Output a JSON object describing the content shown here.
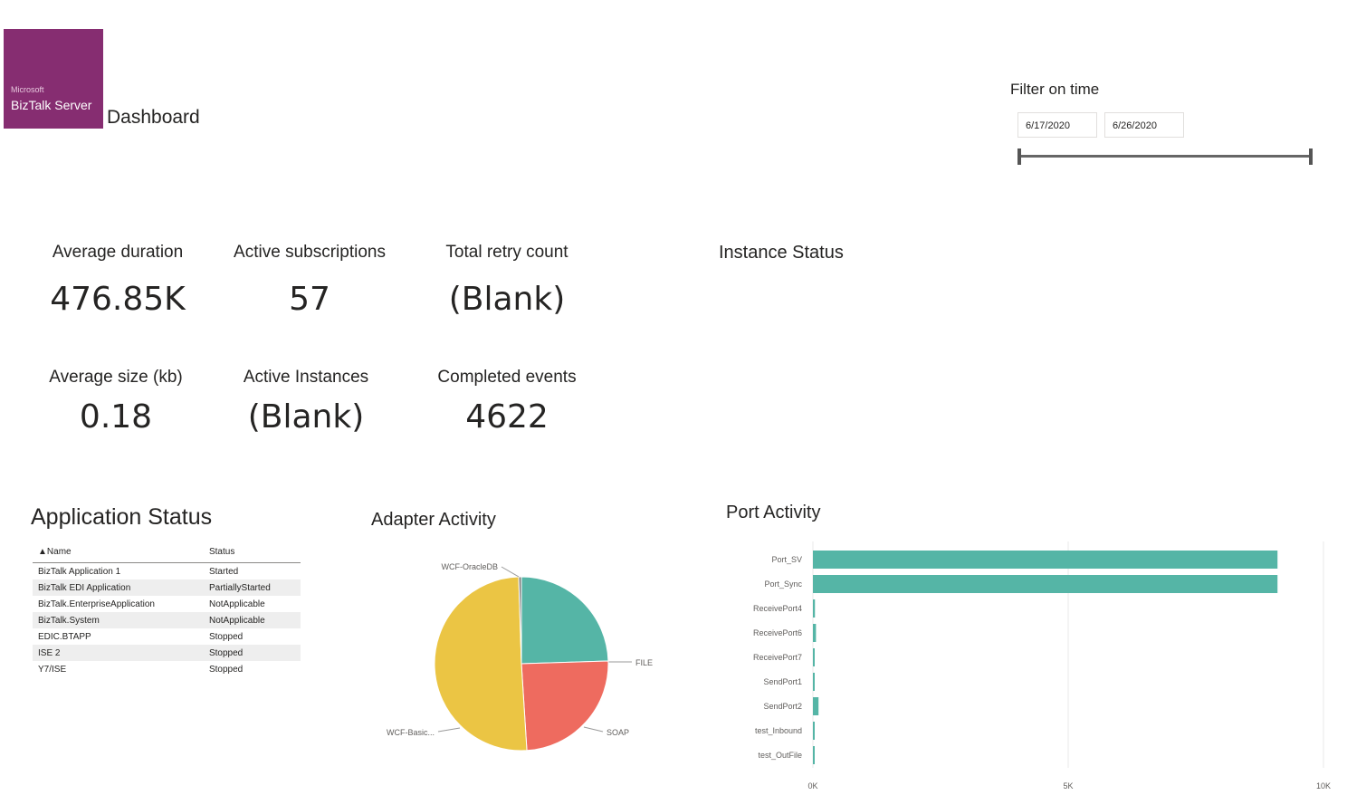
{
  "header": {
    "logo_small": "Microsoft",
    "logo_name": "BizTalk Server",
    "title": "Dashboard"
  },
  "filter": {
    "title": "Filter on time",
    "start_date": "6/17/2020",
    "end_date": "6/26/2020"
  },
  "kpis": {
    "avg_duration": {
      "label": "Average duration",
      "value": "476.85K"
    },
    "active_subscriptions": {
      "label": "Active subscriptions",
      "value": "57"
    },
    "total_retry": {
      "label": "Total retry count",
      "value": "(Blank)"
    },
    "avg_size": {
      "label": "Average size (kb)",
      "value": "0.18"
    },
    "active_instances": {
      "label": "Active Instances",
      "value": "(Blank)"
    },
    "completed_events": {
      "label": "Completed events",
      "value": "4622"
    }
  },
  "instance_status": {
    "title": "Instance Status"
  },
  "application_status": {
    "title": "Application Status",
    "columns": [
      "Name",
      "Status"
    ],
    "rows": [
      [
        "BizTalk Application 1",
        "Started"
      ],
      [
        "BizTalk EDI Application",
        "PartiallyStarted"
      ],
      [
        "BizTalk.EnterpriseApplication",
        "NotApplicable"
      ],
      [
        "BizTalk.System",
        "NotApplicable"
      ],
      [
        "EDIC.BTAPP",
        "Stopped"
      ],
      [
        "ISE 2",
        "Stopped"
      ],
      [
        "Y7/ISE",
        "Stopped"
      ]
    ]
  },
  "adapter_activity": {
    "title": "Adapter Activity"
  },
  "port_activity": {
    "title": "Port Activity"
  },
  "chart_data": [
    {
      "type": "pie",
      "title": "Adapter Activity",
      "labels": [
        "FILE",
        "SOAP",
        "WCF-Basic...",
        "WCF-OracleDB"
      ],
      "values": [
        24.5,
        24.5,
        50.5,
        0.5
      ],
      "colors": [
        "#55b5a6",
        "#ee6b5f",
        "#ebc544",
        "#7d7d7d"
      ]
    },
    {
      "type": "bar",
      "orientation": "horizontal",
      "title": "Port Activity",
      "categories": [
        "Port_SV",
        "Port_Sync",
        "ReceivePort4",
        "ReceivePort6",
        "ReceivePort7",
        "SendPort1",
        "SendPort2",
        "test_Inbound",
        "test_OutFile"
      ],
      "values": [
        9100,
        9100,
        40,
        60,
        30,
        30,
        110,
        30,
        30
      ],
      "xticks": [
        "0K",
        "5K",
        "10K"
      ],
      "xlim": [
        0,
        10000
      ],
      "color": "#55b5a6"
    }
  ]
}
